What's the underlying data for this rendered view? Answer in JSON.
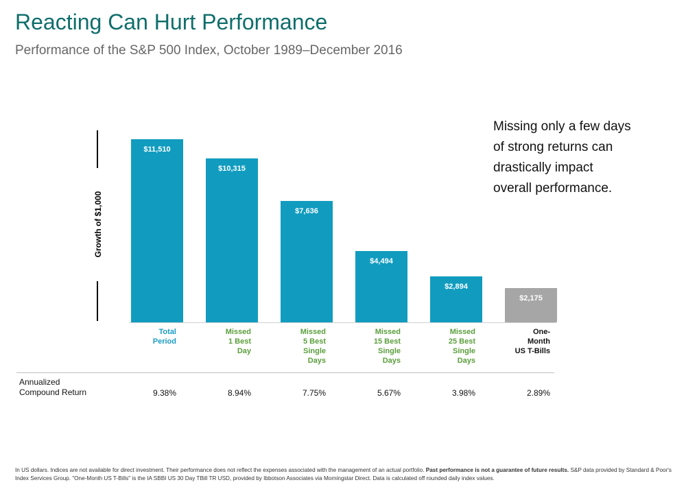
{
  "header": {
    "title": "Reacting Can Hurt Performance",
    "subtitle": "Performance of the S&P 500 Index, October 1989–December 2016"
  },
  "callout": {
    "lines": [
      "Missing only a few days",
      "of strong returns can",
      "drastically impact",
      "overall performance."
    ]
  },
  "chart_data": {
    "type": "bar",
    "title": "Performance of the S&P 500 Index, October 1989–December 2016",
    "ylabel": "Growth of $1,000",
    "xlabel": "",
    "ylim": [
      0,
      12000
    ],
    "categories": [
      [
        "Total",
        "Period"
      ],
      [
        "Missed",
        "1 Best",
        "Day"
      ],
      [
        "Missed",
        "5 Best",
        "Single",
        "Days"
      ],
      [
        "Missed",
        "15 Best",
        "Single",
        "Days"
      ],
      [
        "Missed",
        "25 Best",
        "Single",
        "Days"
      ],
      [
        "One-",
        "Month",
        "US T-Bills"
      ]
    ],
    "values": [
      11510,
      10315,
      7636,
      4494,
      2894,
      2175
    ],
    "value_labels": [
      "$11,510",
      "$10,315",
      "$7,636",
      "$4,494",
      "$2,894",
      "$2,175"
    ],
    "annualized_returns": [
      "9.38%",
      "8.94%",
      "7.75%",
      "5.67%",
      "3.98%",
      "2.89%"
    ],
    "bar_colors": [
      "#119cbf",
      "#119cbf",
      "#119cbf",
      "#119cbf",
      "#119cbf",
      "#a6a6a6"
    ],
    "category_colors": [
      "#1b9cc4",
      "#5a9e3c",
      "#5a9e3c",
      "#5a9e3c",
      "#5a9e3c",
      "#111111"
    ],
    "grid": false
  },
  "returns_row": {
    "label_lines": [
      "Annualized",
      "Compound Return"
    ]
  },
  "footnote": {
    "text_1": "In US dollars. Indices are not available for direct investment. Their performance does not reflect the expenses associated with the management of an actual portfolio. ",
    "bold": "Past performance is not a guarantee of future results.",
    "text_2": " S&P data provided by Standard & Poor's Index Services Group. \"One-Month US T-Bills\" is the IA SBBI US 30 Day TBill TR USD, provided by Ibbotson Associates via Morningstar Direct. Data is calculated off rounded daily index values."
  }
}
